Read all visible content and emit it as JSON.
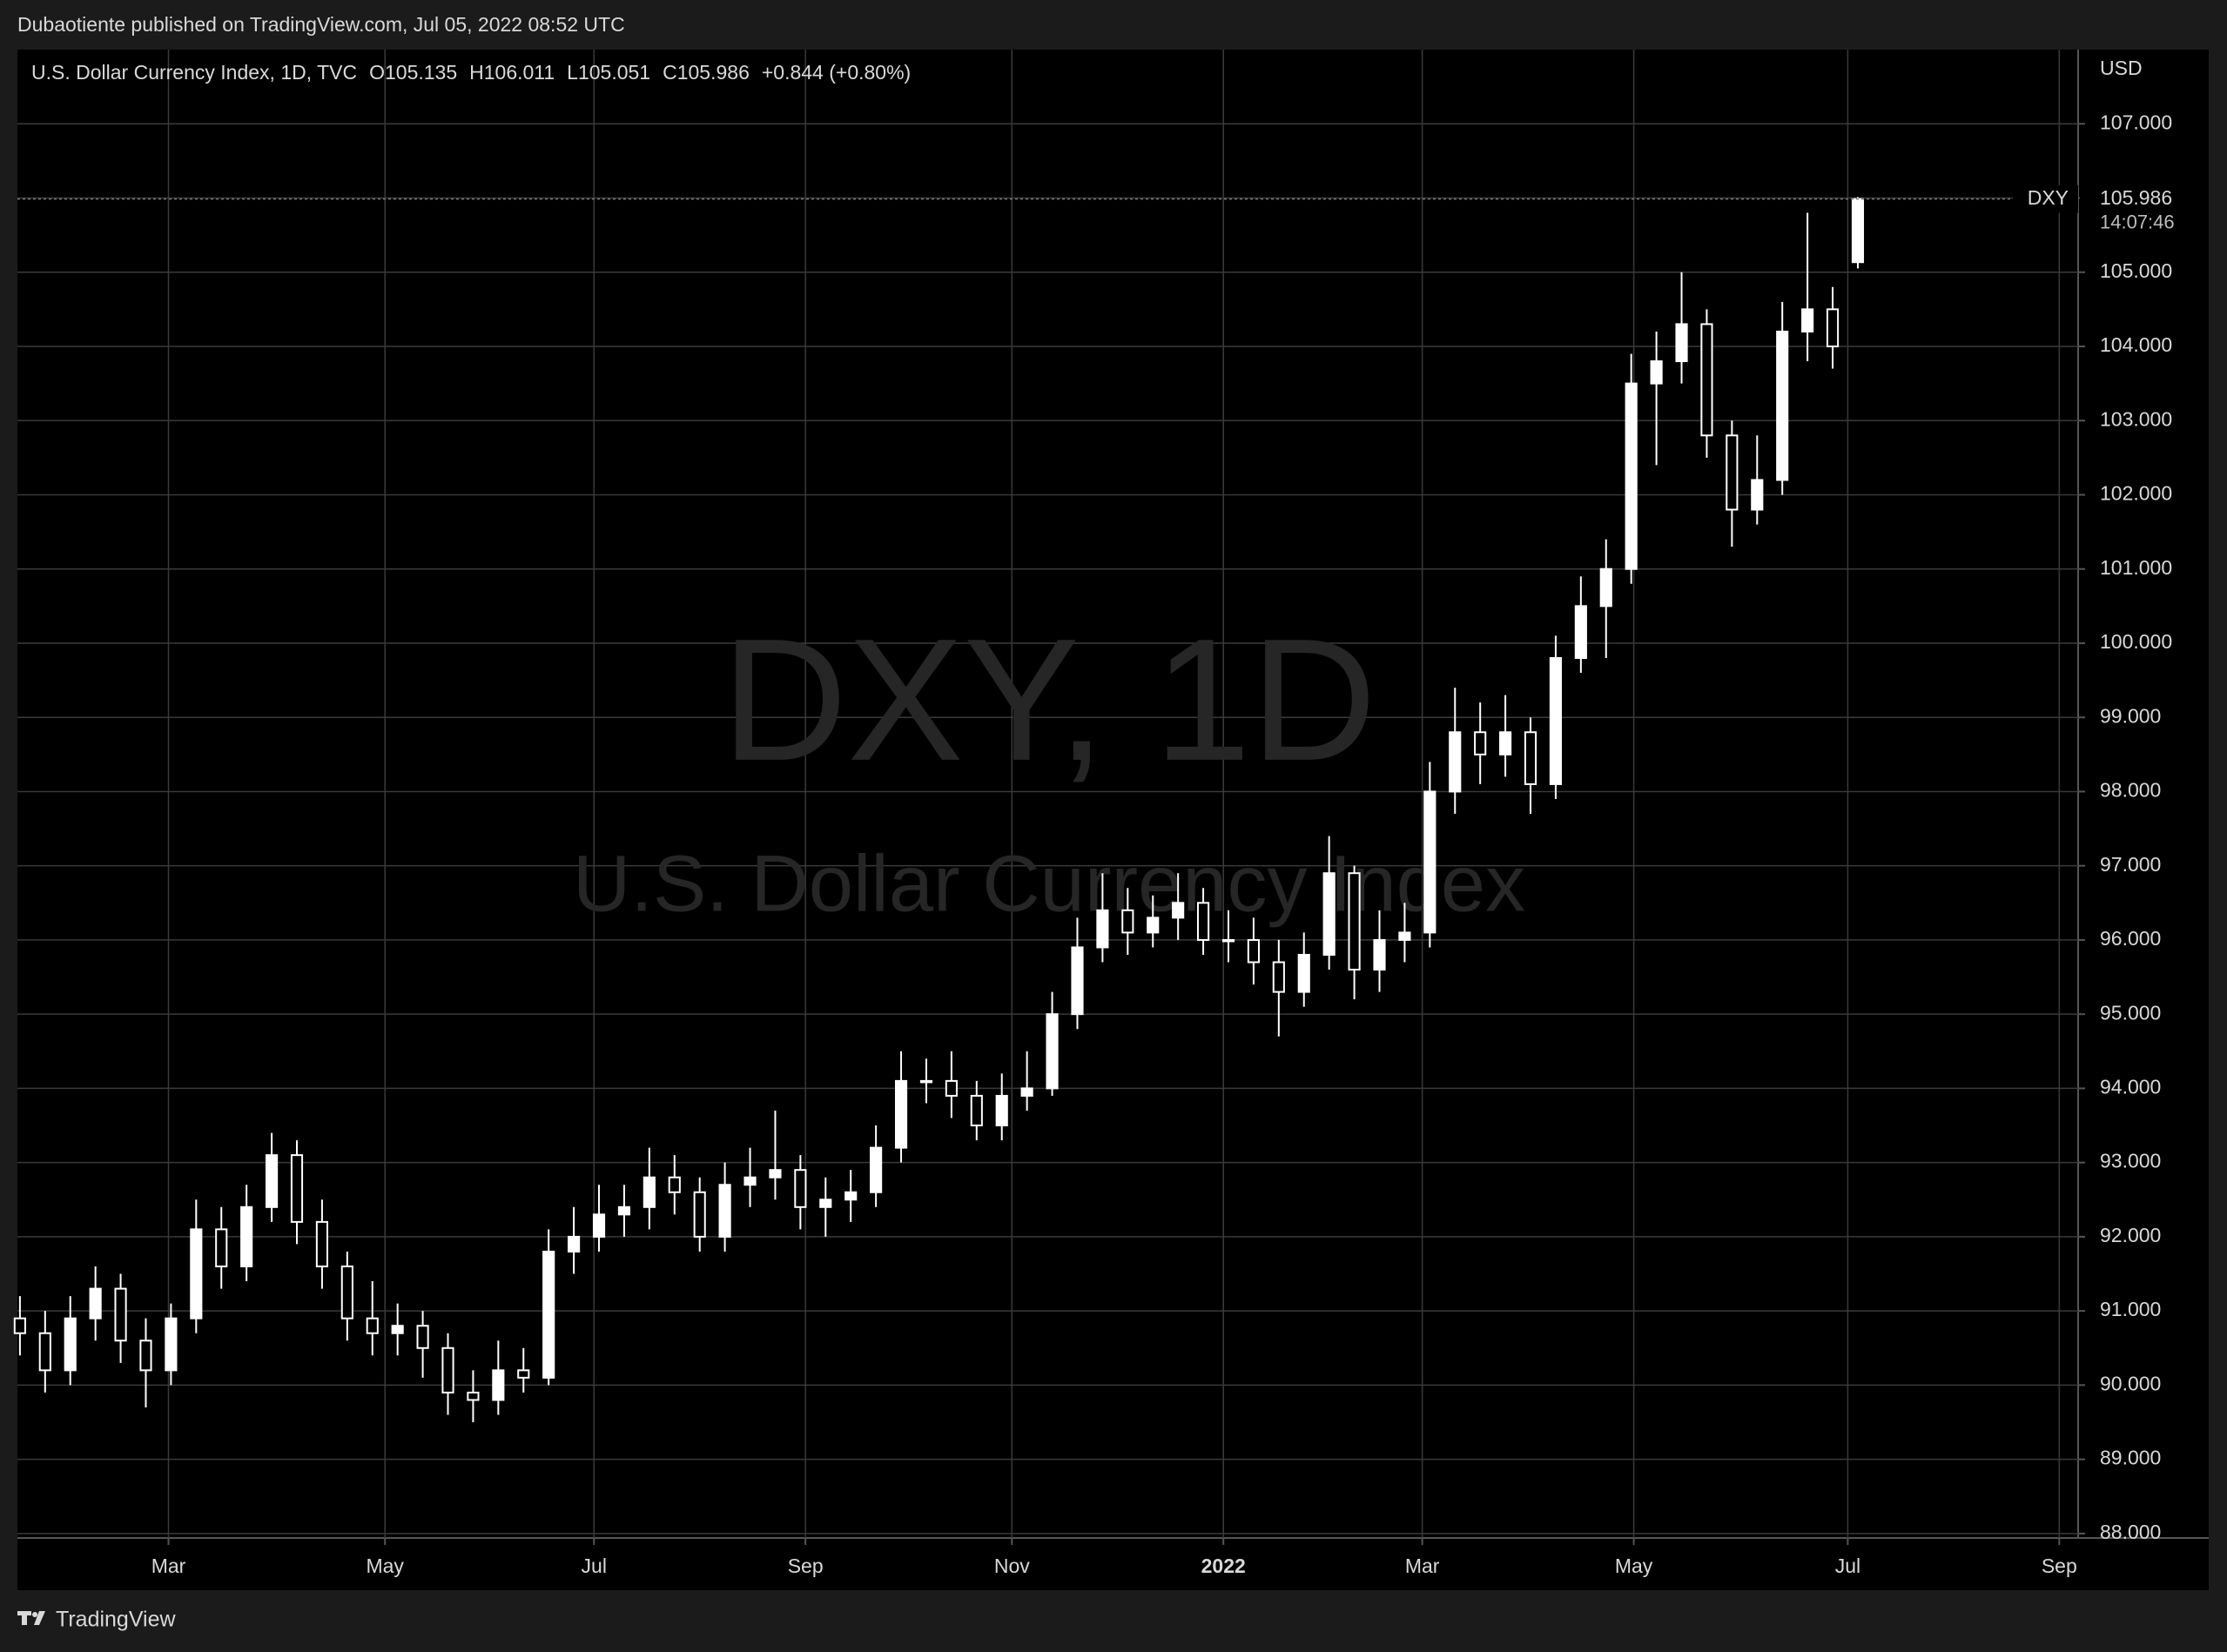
{
  "header": "Dubaotiente published on TradingView.com, Jul 05, 2022 08:52 UTC",
  "footer": "TradingView",
  "chart_data": {
    "type": "candlestick",
    "legend_title": "U.S. Dollar Currency Index, 1D, TVC",
    "legend_ohlc": [
      "O105.135",
      "H106.011",
      "L105.051",
      "C105.986",
      "+0.844 (+0.80%)"
    ],
    "watermark_title": "DXY, 1D",
    "watermark_subtitle": "U.S. Dollar Currency Index",
    "currency": "USD",
    "symbol": "DXY",
    "countdown": "14:07:46",
    "up_color": "#ffffff",
    "down_color": "#000000",
    "wick_color": "#ffffff",
    "grid": true,
    "xlim": [
      -0.1,
      81.75
    ],
    "xticks": [
      {
        "value": 5.9,
        "label": "Mar"
      },
      {
        "value": 14.5,
        "label": "May"
      },
      {
        "value": 22.8,
        "label": "Jul"
      },
      {
        "value": 31.2,
        "label": "Sep"
      },
      {
        "value": 39.4,
        "label": "Nov"
      },
      {
        "value": 47.8,
        "label": "2022"
      },
      {
        "value": 55.7,
        "label": "Mar"
      },
      {
        "value": 64.1,
        "label": "May"
      },
      {
        "value": 72.6,
        "label": "Jul"
      },
      {
        "value": 81.0,
        "label": "Sep"
      }
    ],
    "ylim": [
      87.94,
      108.0
    ],
    "yticks": [
      {
        "value": 88,
        "label": "88.000"
      },
      {
        "value": 89,
        "label": "89.000"
      },
      {
        "value": 90,
        "label": "90.000"
      },
      {
        "value": 91,
        "label": "91.000"
      },
      {
        "value": 92,
        "label": "92.000"
      },
      {
        "value": 93,
        "label": "93.000"
      },
      {
        "value": 94,
        "label": "94.000"
      },
      {
        "value": 95,
        "label": "95.000"
      },
      {
        "value": 96,
        "label": "96.000"
      },
      {
        "value": 97,
        "label": "97.000"
      },
      {
        "value": 98,
        "label": "98.000"
      },
      {
        "value": 99,
        "label": "99.000"
      },
      {
        "value": 100,
        "label": "100.000"
      },
      {
        "value": 101,
        "label": "101.000"
      },
      {
        "value": 102,
        "label": "102.000"
      },
      {
        "value": 103,
        "label": "103.000"
      },
      {
        "value": 104,
        "label": "104.000"
      },
      {
        "value": 105,
        "label": "105.000"
      },
      {
        "value": 106,
        "label": "106.000"
      },
      {
        "value": 107,
        "label": "107.000"
      }
    ],
    "open": [
      90.9,
      90.7,
      90.2,
      90.9,
      91.3,
      90.6,
      90.2,
      90.9,
      92.1,
      91.6,
      92.4,
      93.1,
      92.2,
      91.6,
      90.9,
      90.7,
      90.8,
      90.5,
      89.9,
      89.8,
      90.2,
      90.1,
      91.8,
      92.0,
      92.3,
      92.4,
      92.8,
      92.6,
      92.0,
      92.7,
      92.8,
      92.9,
      92.4,
      92.5,
      92.6,
      93.2,
      94.1,
      94.1,
      93.9,
      93.5,
      93.9,
      94.0,
      95.0,
      95.9,
      96.4,
      96.1,
      96.3,
      96.5,
      96.0,
      96.0,
      95.7,
      95.3,
      95.8,
      96.9,
      95.6,
      96.0,
      96.1,
      98.0,
      98.8,
      98.5,
      98.8,
      98.1,
      99.8,
      100.5,
      101.0,
      103.5,
      103.8,
      104.3,
      102.8,
      101.8,
      102.2,
      104.2,
      104.5,
      105.135
    ],
    "high": [
      91.2,
      91.0,
      91.2,
      91.6,
      91.5,
      90.9,
      91.1,
      92.5,
      92.4,
      92.7,
      93.4,
      93.3,
      92.5,
      91.8,
      91.4,
      91.1,
      91.0,
      90.7,
      90.2,
      90.6,
      90.5,
      92.1,
      92.4,
      92.7,
      92.7,
      93.2,
      93.1,
      92.8,
      93.0,
      93.2,
      93.7,
      93.1,
      92.8,
      92.9,
      93.5,
      94.5,
      94.4,
      94.5,
      94.1,
      94.2,
      94.5,
      95.3,
      96.3,
      96.9,
      96.7,
      96.6,
      96.9,
      96.7,
      96.4,
      96.3,
      96.0,
      96.1,
      97.4,
      97.0,
      96.4,
      96.5,
      98.4,
      99.4,
      99.2,
      99.3,
      99.0,
      100.1,
      100.9,
      101.4,
      103.9,
      104.2,
      105.0,
      104.5,
      103.0,
      102.8,
      104.6,
      105.8,
      104.8,
      106.011
    ],
    "low": [
      90.4,
      89.9,
      90.0,
      90.6,
      90.3,
      89.7,
      90.0,
      90.7,
      91.3,
      91.4,
      92.2,
      91.9,
      91.3,
      90.6,
      90.4,
      90.4,
      90.1,
      89.6,
      89.5,
      89.6,
      89.9,
      90.0,
      91.5,
      91.8,
      92.0,
      92.1,
      92.3,
      91.8,
      91.8,
      92.4,
      92.5,
      92.1,
      92.0,
      92.2,
      92.4,
      93.0,
      93.8,
      93.6,
      93.3,
      93.3,
      93.7,
      93.9,
      94.8,
      95.7,
      95.8,
      95.9,
      96.0,
      95.8,
      95.7,
      95.4,
      94.7,
      95.1,
      95.6,
      95.2,
      95.3,
      95.7,
      95.9,
      97.7,
      98.1,
      98.2,
      97.7,
      97.9,
      99.6,
      99.8,
      100.8,
      102.4,
      103.5,
      102.5,
      101.3,
      101.6,
      102.0,
      103.8,
      103.7,
      105.051
    ],
    "close": [
      90.7,
      90.2,
      90.9,
      91.3,
      90.6,
      90.2,
      90.9,
      92.1,
      91.6,
      92.4,
      93.1,
      92.2,
      91.6,
      90.9,
      90.7,
      90.8,
      90.5,
      89.9,
      89.8,
      90.2,
      90.1,
      91.8,
      92.0,
      92.3,
      92.4,
      92.8,
      92.6,
      92.0,
      92.7,
      92.8,
      92.9,
      92.4,
      92.5,
      92.6,
      93.2,
      94.1,
      94.1,
      93.9,
      93.5,
      93.9,
      94.0,
      95.0,
      95.9,
      96.4,
      96.1,
      96.3,
      96.5,
      96.0,
      96.0,
      95.7,
      95.3,
      95.8,
      96.9,
      95.6,
      96.0,
      96.1,
      98.0,
      98.8,
      98.5,
      98.8,
      98.1,
      99.8,
      100.5,
      101.0,
      103.5,
      103.8,
      104.3,
      102.8,
      101.8,
      102.2,
      104.2,
      104.5,
      104.0,
      105.986
    ]
  }
}
